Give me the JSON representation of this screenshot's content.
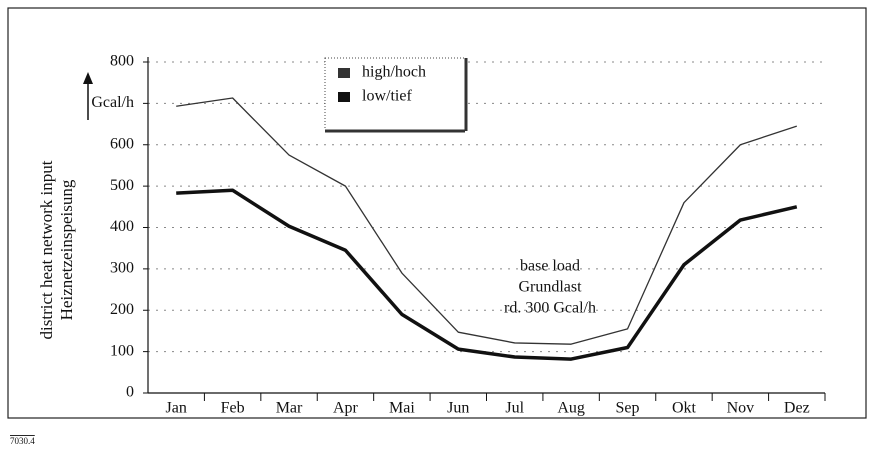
{
  "chart_data": {
    "type": "line",
    "y_label": [
      "district heat network input",
      "Heiznetzeinspeisung"
    ],
    "categories": [
      "Jan",
      "Feb",
      "Mar",
      "Apr",
      "Mai",
      "Jun",
      "Jul",
      "Aug",
      "Sep",
      "Okt",
      "Nov",
      "Dez"
    ],
    "series": [
      {
        "name": "high/hoch",
        "color": "#333333",
        "width": 1.3,
        "values": [
          693,
          713,
          575,
          500,
          290,
          147,
          121,
          118,
          155,
          460,
          600,
          645
        ]
      },
      {
        "name": "low/tief",
        "color": "#111111",
        "width": 3.5,
        "values": [
          483,
          490,
          403,
          345,
          190,
          106,
          87,
          82,
          110,
          310,
          418,
          450
        ]
      }
    ],
    "ylim": [
      0,
      800
    ],
    "yticks": [
      0,
      100,
      200,
      300,
      400,
      500,
      600,
      {
        "value": 700,
        "label": "Gcal/h"
      },
      800
    ],
    "grid": true,
    "annotation": [
      "base load",
      "Grundlast",
      "rd. 300 Gcal/h"
    ],
    "figure_id": "7030.4"
  }
}
